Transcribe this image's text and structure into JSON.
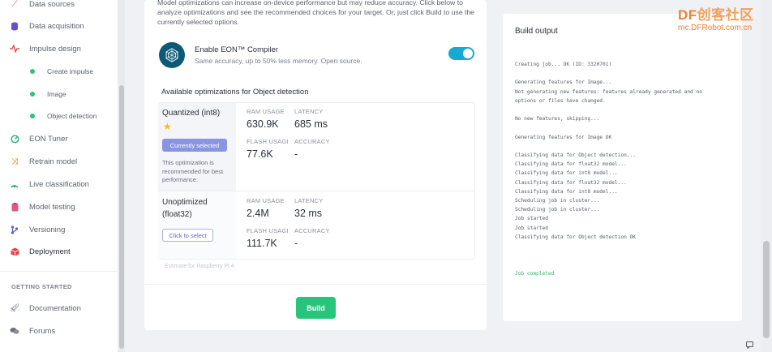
{
  "sidebar": {
    "items": [
      {
        "label": "Data sources",
        "icon": "wand-icon",
        "color": "#d44b4b"
      },
      {
        "label": "Data acquisition",
        "icon": "database-icon",
        "color": "#6a4fc4"
      },
      {
        "label": "Impulse design",
        "icon": "pulse-icon",
        "color": "#e05252"
      },
      {
        "label": "Create impulse",
        "icon": "green-dot"
      },
      {
        "label": "Image",
        "icon": "green-dot"
      },
      {
        "label": "Object detection",
        "icon": "green-dot"
      },
      {
        "label": "EON Tuner",
        "icon": "tuner-icon",
        "color": "#27b07a"
      },
      {
        "label": "Retrain model",
        "icon": "shuffle-icon",
        "color": "#e8a53a"
      },
      {
        "label": "Live classification",
        "icon": "antenna-icon",
        "color": "#2aa57a"
      },
      {
        "label": "Model testing",
        "icon": "clipboard-icon",
        "color": "#d85a8a"
      },
      {
        "label": "Versioning",
        "icon": "branch-icon",
        "color": "#5b5fd0"
      },
      {
        "label": "Deployment",
        "icon": "box-icon",
        "color": "#e0434a"
      }
    ],
    "heading": "GETTING STARTED",
    "bottom_items": [
      {
        "label": "Documentation",
        "icon": "rocket-icon"
      },
      {
        "label": "Forums",
        "icon": "chat-bubbles-icon"
      }
    ]
  },
  "main": {
    "intro": "Model optimizations can increase on-device performance but may reduce accuracy. Click below to analyze optimizations and see the recommended choices for your target. Or, just click Build to use the currently selected options.",
    "eon": {
      "title": "Enable EON™ Compiler",
      "subtitle": "Same accuracy, up to 50% less memory. Open source.",
      "enabled": true
    },
    "optimizations_title": "Available optimizations for Object detection",
    "options": [
      {
        "name_line1": "Quantized (int8)",
        "name_line2": "",
        "badge": "Currently selected",
        "note": "This optimization is recommended for best performance.",
        "ram_label": "RAM USAGE",
        "ram": "630.9K",
        "latency_label": "LATENCY",
        "latency": "685 ms",
        "flash_label": "FLASH USAGI",
        "flash": "77.6K",
        "accuracy_label": "ACCURACY",
        "accuracy": "-"
      },
      {
        "name_line1": "Unoptimized",
        "name_line2": "(float32)",
        "badge": "Click to select",
        "ram_label": "RAM USAGE",
        "ram": "2.4M",
        "latency_label": "LATENCY",
        "latency": "32 ms",
        "flash_label": "FLASH USAGI",
        "flash": "111.7K",
        "accuracy_label": "ACCURACY",
        "accuracy": "-"
      }
    ],
    "estimate": "Estimate for Raspberry Pi 4",
    "build_label": "Build"
  },
  "build_output": {
    "title": "Build output",
    "log_lines": [
      "Creating job... OK (ID: 3320701)",
      "",
      "Generating features for Image...",
      "Not generating new features: features already generated and no",
      "options or files have changed.",
      "",
      "No new features, skipping...",
      "",
      "Generating features for Image OK",
      "",
      "Classifying data for Object detection...",
      "Classifying data for float32 model...",
      "Classifying data for int8 model...",
      "Classifying data for float32 model...",
      "Classifying data for int8 model...",
      "Scheduling job in cluster...",
      "Scheduling job in cluster...",
      "Job started",
      "Job started",
      "Classifying data for Object detection OK",
      "",
      "",
      ""
    ],
    "completed": "Job completed"
  },
  "watermark": {
    "brand_a": "DF",
    "brand_b": "创客社区",
    "url": "mc.DFRobot.com.cn"
  },
  "colors": {
    "accent_green": "#27c47c",
    "toggle_blue": "#17a9d4",
    "badge_purple": "#8b94e0"
  }
}
